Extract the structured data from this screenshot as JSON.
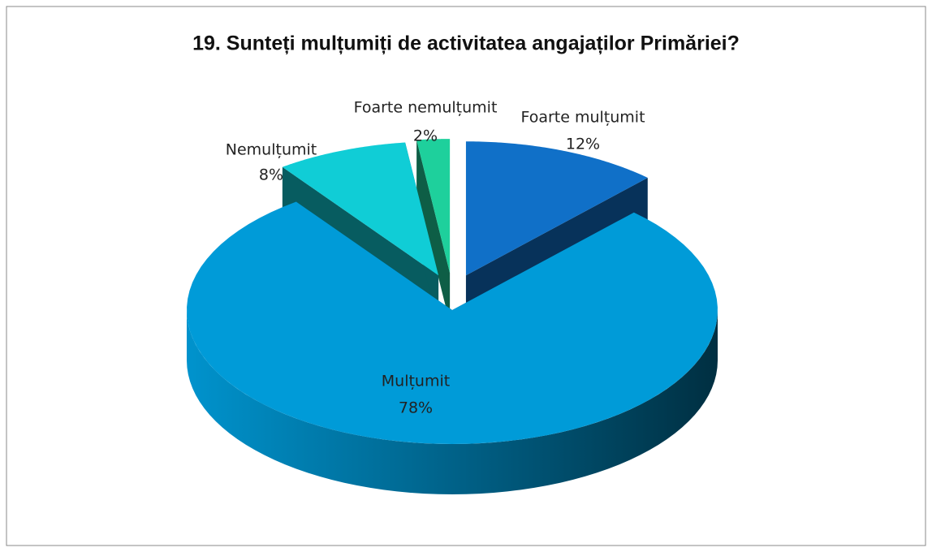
{
  "chart_data": {
    "type": "pie",
    "title": "19. Sunteți mulțumiți de activitatea angajaților Primăriei?",
    "categories": [
      "Foarte mulțumit",
      "Mulțumit",
      "Nemulțumit",
      "Foarte nemulțumit"
    ],
    "values": [
      12,
      78,
      8,
      2
    ],
    "value_labels": [
      "12%",
      "78%",
      "8%",
      "2%"
    ],
    "colors": [
      "#1070c8",
      "#009bd8",
      "#10cdd6",
      "#1ed09c"
    ]
  }
}
